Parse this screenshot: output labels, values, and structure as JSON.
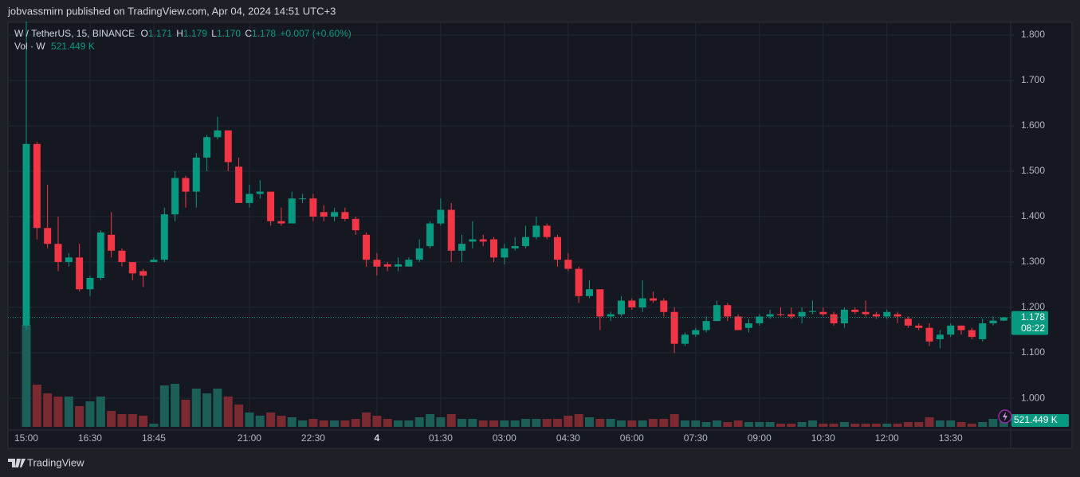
{
  "header": "jobvassmirn published on TradingView.com, Apr 04, 2024 14:51 UTC+3",
  "footer": "TradingView",
  "chart_data": {
    "type": "candlestick",
    "legend": {
      "symbol": "W / TetherUS, 15, BINANCE",
      "o_label": "O",
      "o": "1.171",
      "h_label": "H",
      "h": "1.179",
      "l_label": "L",
      "l": "1.170",
      "c_label": "C",
      "c": "1.178",
      "change": "+0.007 (+0.60%)"
    },
    "last_price_label": "1.178",
    "countdown": "08:22",
    "up_color": "#089981",
    "down_color": "#f23645",
    "categories": [
      "15:00",
      null,
      null,
      null,
      null,
      null,
      "16:30",
      null,
      null,
      null,
      null,
      null,
      "18:45",
      null,
      null,
      null,
      null,
      null,
      null,
      null,
      null,
      "21:00",
      null,
      null,
      null,
      null,
      null,
      "22:30",
      null,
      null,
      null,
      null,
      null,
      "4",
      null,
      null,
      null,
      null,
      null,
      "01:30",
      null,
      null,
      null,
      null,
      null,
      "03:00",
      null,
      null,
      null,
      null,
      null,
      "04:30",
      null,
      null,
      null,
      null,
      null,
      "06:00",
      null,
      null,
      null,
      null,
      null,
      "07:30",
      null,
      null,
      null,
      null,
      null,
      "09:00",
      null,
      null,
      null,
      null,
      null,
      "10:30",
      null,
      null,
      null,
      null,
      null,
      "12:00",
      null,
      null,
      null,
      null,
      null,
      "13:30",
      null,
      null,
      null,
      null,
      null
    ],
    "open": [
      1.16,
      1.56,
      1.375,
      1.34,
      1.3,
      1.31,
      1.24,
      1.265,
      1.36,
      1.325,
      1.3,
      1.28,
      1.3,
      1.305,
      1.405,
      1.485,
      1.455,
      1.53,
      1.575,
      1.59,
      1.51,
      1.43,
      1.45,
      1.455,
      1.39,
      1.385,
      1.44,
      1.44,
      1.41,
      1.4,
      1.41,
      1.395,
      1.36,
      1.305,
      1.295,
      1.29,
      1.29,
      1.305,
      1.335,
      1.385,
      1.415,
      1.325,
      1.345,
      1.35,
      1.35,
      1.31,
      1.33,
      1.335,
      1.355,
      1.38,
      1.355,
      1.305,
      1.285,
      1.225,
      1.24,
      1.18,
      1.185,
      1.215,
      1.2,
      1.22,
      1.215,
      1.19,
      1.12,
      1.14,
      1.15,
      1.17,
      1.205,
      1.18,
      1.155,
      1.165,
      1.18,
      1.185,
      1.185,
      1.18,
      1.19,
      1.19,
      1.185,
      1.165,
      1.195,
      1.19,
      1.185,
      1.18,
      1.185,
      1.175,
      1.16,
      1.155,
      1.13,
      1.14,
      1.16,
      1.15,
      1.13,
      1.165,
      1.171
    ],
    "high": [
      1.83,
      1.565,
      1.47,
      1.4,
      1.32,
      1.34,
      1.27,
      1.37,
      1.41,
      1.33,
      1.3,
      1.285,
      1.31,
      1.42,
      1.5,
      1.49,
      1.54,
      1.58,
      1.62,
      1.59,
      1.53,
      1.47,
      1.48,
      1.455,
      1.42,
      1.455,
      1.45,
      1.45,
      1.425,
      1.42,
      1.42,
      1.4,
      1.365,
      1.32,
      1.3,
      1.31,
      1.31,
      1.35,
      1.39,
      1.44,
      1.43,
      1.36,
      1.39,
      1.36,
      1.355,
      1.34,
      1.355,
      1.38,
      1.4,
      1.385,
      1.36,
      1.32,
      1.29,
      1.26,
      1.24,
      1.19,
      1.225,
      1.22,
      1.26,
      1.235,
      1.22,
      1.2,
      1.145,
      1.155,
      1.18,
      1.215,
      1.21,
      1.185,
      1.175,
      1.185,
      1.195,
      1.2,
      1.2,
      1.2,
      1.215,
      1.2,
      1.19,
      1.2,
      1.2,
      1.215,
      1.19,
      1.195,
      1.19,
      1.18,
      1.165,
      1.165,
      1.15,
      1.165,
      1.16,
      1.155,
      1.175,
      1.18,
      1.179
    ],
    "low": [
      1.15,
      1.35,
      1.33,
      1.28,
      1.29,
      1.235,
      1.225,
      1.26,
      1.31,
      1.29,
      1.26,
      1.245,
      1.3,
      1.3,
      1.39,
      1.42,
      1.42,
      1.5,
      1.57,
      1.5,
      1.43,
      1.42,
      1.44,
      1.38,
      1.38,
      1.385,
      1.43,
      1.39,
      1.39,
      1.39,
      1.39,
      1.36,
      1.29,
      1.27,
      1.28,
      1.28,
      1.29,
      1.3,
      1.33,
      1.38,
      1.3,
      1.3,
      1.33,
      1.335,
      1.3,
      1.295,
      1.325,
      1.33,
      1.35,
      1.35,
      1.29,
      1.28,
      1.21,
      1.22,
      1.15,
      1.17,
      1.18,
      1.195,
      1.19,
      1.21,
      1.18,
      1.1,
      1.115,
      1.135,
      1.145,
      1.17,
      1.17,
      1.15,
      1.145,
      1.16,
      1.175,
      1.18,
      1.175,
      1.165,
      1.185,
      1.18,
      1.16,
      1.155,
      1.185,
      1.18,
      1.175,
      1.175,
      1.165,
      1.155,
      1.15,
      1.115,
      1.11,
      1.135,
      1.14,
      1.13,
      1.125,
      1.16,
      1.17
    ],
    "close": [
      1.56,
      1.375,
      1.34,
      1.3,
      1.31,
      1.24,
      1.265,
      1.365,
      1.325,
      1.3,
      1.275,
      1.27,
      1.305,
      1.405,
      1.485,
      1.455,
      1.53,
      1.575,
      1.59,
      1.52,
      1.43,
      1.45,
      1.455,
      1.39,
      1.385,
      1.44,
      1.44,
      1.4,
      1.4,
      1.41,
      1.395,
      1.37,
      1.305,
      1.29,
      1.29,
      1.295,
      1.305,
      1.33,
      1.385,
      1.415,
      1.325,
      1.34,
      1.35,
      1.345,
      1.31,
      1.33,
      1.335,
      1.355,
      1.38,
      1.355,
      1.305,
      1.285,
      1.225,
      1.24,
      1.18,
      1.185,
      1.215,
      1.2,
      1.22,
      1.215,
      1.19,
      1.12,
      1.14,
      1.15,
      1.17,
      1.205,
      1.18,
      1.15,
      1.165,
      1.18,
      1.185,
      1.183,
      1.18,
      1.19,
      1.192,
      1.185,
      1.165,
      1.195,
      1.19,
      1.185,
      1.18,
      1.19,
      1.18,
      1.16,
      1.155,
      1.125,
      1.14,
      1.16,
      1.15,
      1.135,
      1.165,
      1.171,
      1.178
    ],
    "volume": {
      "name": "Vol · W",
      "value_label": "521.449 K",
      "up_color": "#1b5f58",
      "down_color": "#7b2a31",
      "values": [
        7424,
        3074,
        2436,
        2204,
        2204,
        1508,
        1856,
        2204,
        1160,
        928,
        928,
        812,
        232,
        3016,
        3132,
        1972,
        2784,
        2436,
        2784,
        2204,
        1624,
        1044,
        812,
        1044,
        812,
        696,
        464,
        580,
        464,
        464,
        464,
        580,
        1044,
        812,
        580,
        464,
        464,
        696,
        928,
        696,
        928,
        580,
        580,
        464,
        464,
        464,
        464,
        580,
        580,
        580,
        580,
        812,
        928,
        696,
        580,
        580,
        464,
        464,
        464,
        580,
        580,
        928,
        464,
        464,
        348,
        464,
        348,
        464,
        348,
        348,
        348,
        232,
        232,
        348,
        464,
        232,
        232,
        348,
        232,
        232,
        232,
        232,
        232,
        348,
        348,
        696,
        464,
        464,
        348,
        232,
        348,
        580,
        521.449
      ]
    },
    "ylim": [
      0.93,
      1.828
    ],
    "yticks": [
      {
        "value": 1.0,
        "label": "1.000"
      },
      {
        "value": 1.1,
        "label": "1.100"
      },
      {
        "value": 1.2,
        "label": "1.200"
      },
      {
        "value": 1.3,
        "label": "1.300"
      },
      {
        "value": 1.4,
        "label": "1.400"
      },
      {
        "value": 1.5,
        "label": "1.500"
      },
      {
        "value": 1.6,
        "label": "1.600"
      },
      {
        "value": 1.7,
        "label": "1.700"
      },
      {
        "value": 1.8,
        "label": "1.800"
      }
    ],
    "grid": true
  }
}
